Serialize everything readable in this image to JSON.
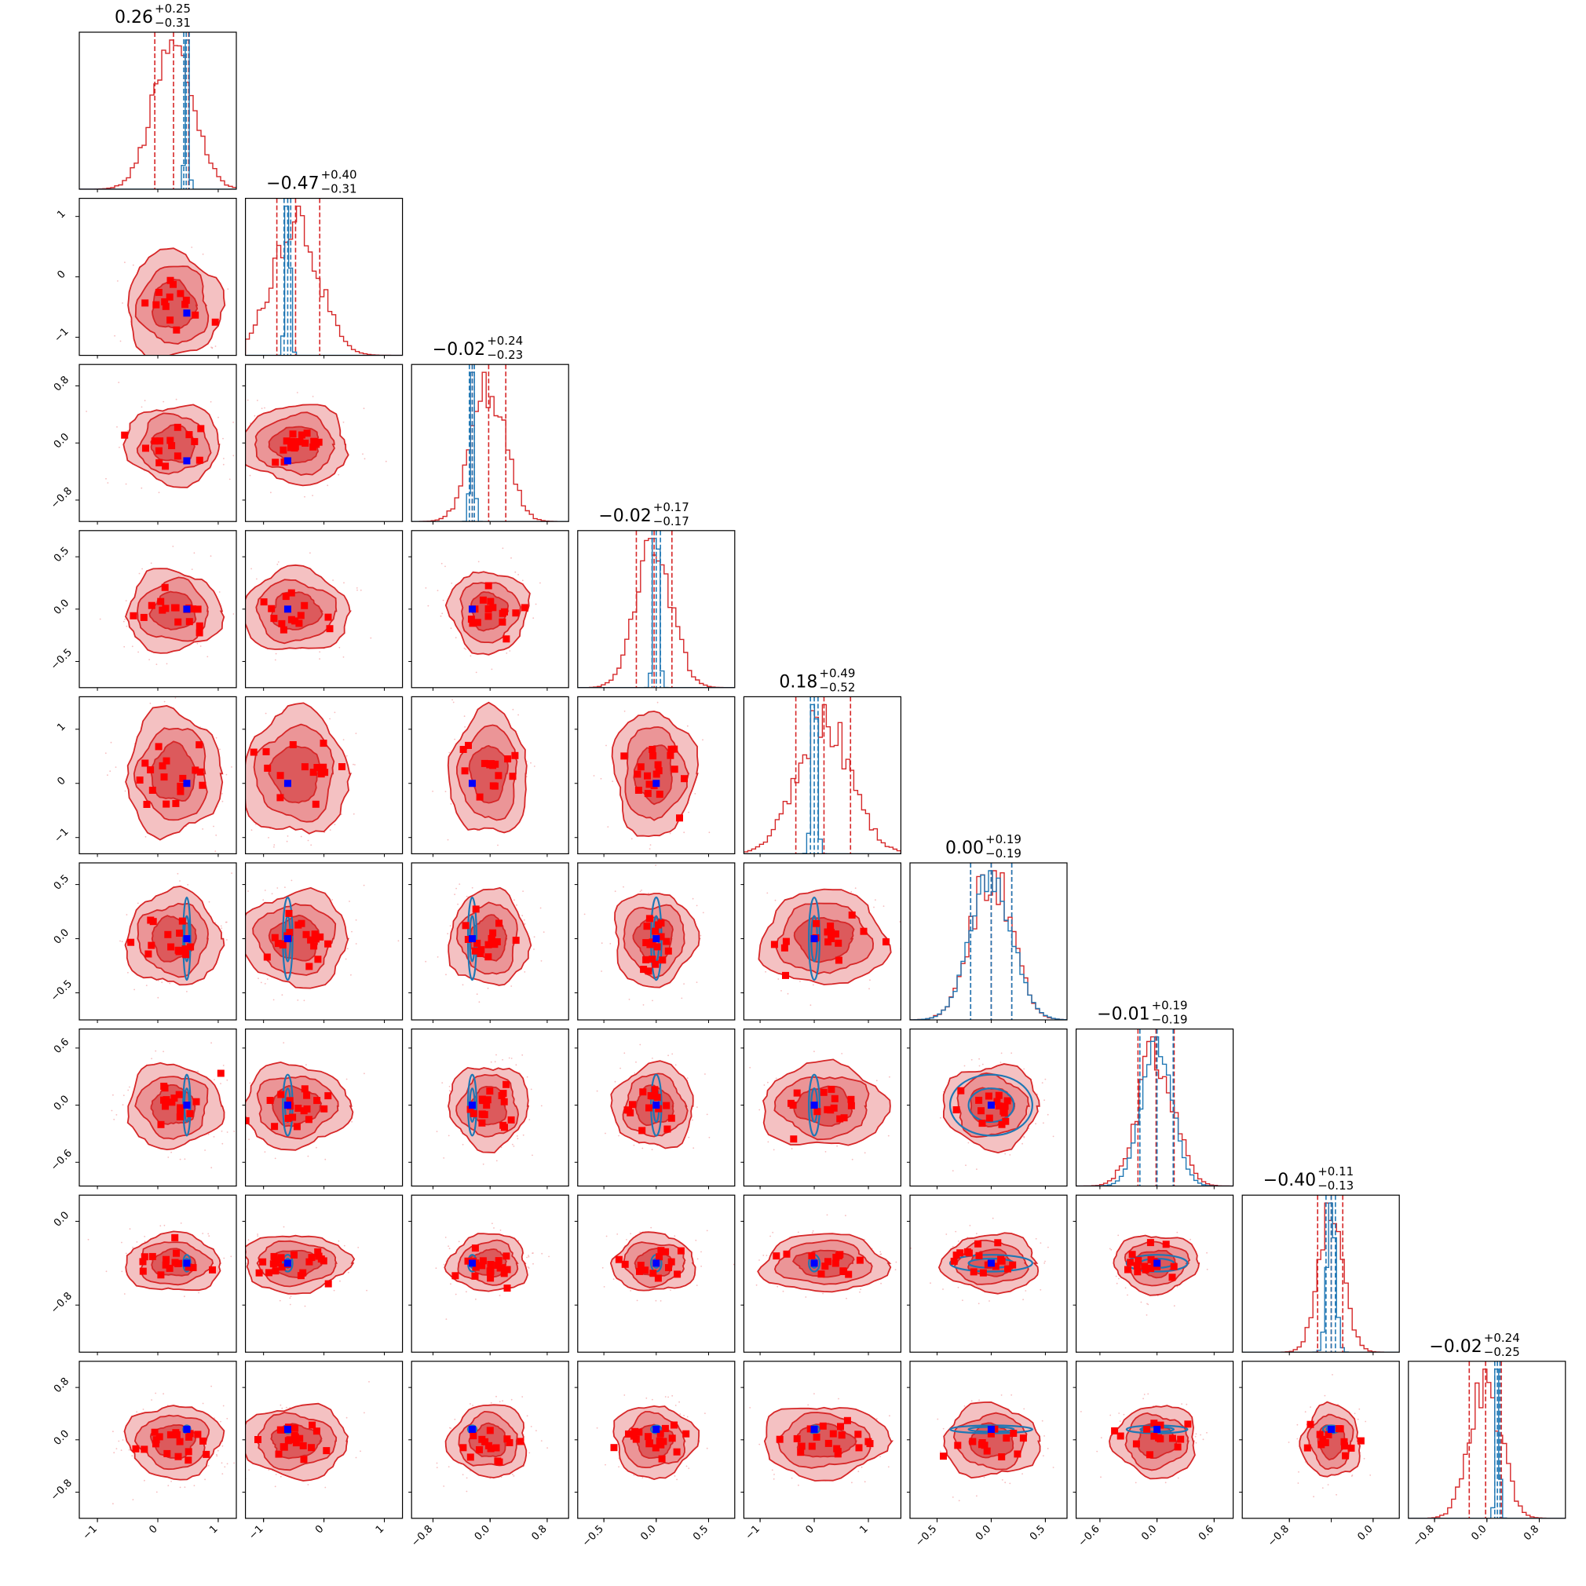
{
  "chart_data": {
    "type": "corner",
    "n_params": 9,
    "series": [
      {
        "color": "#d62728",
        "role": "wide posterior (filled contours + histogram)"
      },
      {
        "color": "#1f77b4",
        "role": "narrow posterior (line contours + histogram)"
      }
    ],
    "markers": {
      "red_color": "#ff0000",
      "blue_color": "#0000ff"
    },
    "titles": [
      {
        "main": "0.26",
        "plus": "+0.25",
        "minus": "−0.31"
      },
      {
        "main": "−0.47",
        "plus": "+0.40",
        "minus": "−0.31"
      },
      {
        "main": "−0.02",
        "plus": "+0.24",
        "minus": "−0.23"
      },
      {
        "main": "−0.02",
        "plus": "+0.17",
        "minus": "−0.17"
      },
      {
        "main": "0.18",
        "plus": "+0.49",
        "minus": "−0.52"
      },
      {
        "main": "0.00",
        "plus": "+0.19",
        "minus": "−0.19"
      },
      {
        "main": "−0.01",
        "plus": "+0.19",
        "minus": "−0.19"
      },
      {
        "main": "−0.40",
        "plus": "+0.11",
        "minus": "−0.13"
      },
      {
        "main": "−0.02",
        "plus": "+0.24",
        "minus": "−0.25"
      }
    ],
    "params": [
      {
        "range": [
          -1.3,
          1.3
        ],
        "ticks": [
          {
            "v": -1,
            "label": "−1"
          },
          {
            "v": 0,
            "label": "0"
          },
          {
            "v": 1,
            "label": "1"
          }
        ],
        "median": 0.26,
        "q_lo": -0.05,
        "q_hi": 0.51,
        "red_sigma": 0.34,
        "blue_center": 0.48,
        "blue_sigma": 0.03,
        "blue_q": [
          0.43,
          0.47,
          0.52
        ],
        "marker": 0.48
      },
      {
        "range": [
          -1.3,
          1.3
        ],
        "ticks": [
          {
            "v": -1,
            "label": "−1"
          },
          {
            "v": 0,
            "label": "0"
          },
          {
            "v": 1,
            "label": "1"
          }
        ],
        "median": -0.47,
        "q_lo": -0.78,
        "q_hi": -0.07,
        "red_sigma": 0.38,
        "blue_center": -0.6,
        "blue_sigma": 0.04,
        "blue_q": [
          -0.66,
          -0.6,
          -0.55
        ],
        "marker": -0.6
      },
      {
        "range": [
          -1.1,
          1.1
        ],
        "ticks": [
          {
            "v": -0.8,
            "label": "−0.8"
          },
          {
            "v": 0,
            "label": "0.0"
          },
          {
            "v": 0.8,
            "label": "0.8"
          }
        ],
        "median": -0.02,
        "q_lo": -0.25,
        "q_hi": 0.22,
        "red_sigma": 0.24,
        "blue_center": -0.25,
        "blue_sigma": 0.03,
        "blue_q": [
          -0.29,
          -0.25,
          -0.22
        ],
        "marker": -0.25
      },
      {
        "range": [
          -0.75,
          0.75
        ],
        "ticks": [
          {
            "v": -0.5,
            "label": "−0.5"
          },
          {
            "v": 0,
            "label": "0.0"
          },
          {
            "v": 0.5,
            "label": "0.5"
          }
        ],
        "median": -0.02,
        "q_lo": -0.19,
        "q_hi": 0.15,
        "red_sigma": 0.17,
        "blue_center": 0.0,
        "blue_sigma": 0.025,
        "blue_q": [
          -0.04,
          0.0,
          0.04
        ],
        "marker": 0.0
      },
      {
        "range": [
          -1.3,
          1.6
        ],
        "ticks": [
          {
            "v": -1,
            "label": "−1"
          },
          {
            "v": 0,
            "label": "0"
          },
          {
            "v": 1,
            "label": "1"
          }
        ],
        "median": 0.18,
        "q_lo": -0.34,
        "q_hi": 0.67,
        "red_sigma": 0.5,
        "blue_center": 0.0,
        "blue_sigma": 0.05,
        "blue_q": [
          -0.07,
          0.0,
          0.07
        ],
        "marker": 0.0
      },
      {
        "range": [
          -0.75,
          0.7
        ],
        "ticks": [
          {
            "v": -0.5,
            "label": "−0.5"
          },
          {
            "v": 0,
            "label": "0.0"
          },
          {
            "v": 0.5,
            "label": "0.5"
          }
        ],
        "median": 0.0,
        "q_lo": -0.19,
        "q_hi": 0.19,
        "red_sigma": 0.19,
        "blue_center": 0.0,
        "blue_sigma": 0.19,
        "blue_q": [
          -0.19,
          0.0,
          0.19
        ],
        "marker": 0.0
      },
      {
        "range": [
          -0.85,
          0.8
        ],
        "ticks": [
          {
            "v": -0.6,
            "label": "−0.6"
          },
          {
            "v": 0,
            "label": "0.0"
          },
          {
            "v": 0.6,
            "label": "0.6"
          }
        ],
        "median": -0.01,
        "q_lo": -0.2,
        "q_hi": 0.18,
        "red_sigma": 0.19,
        "blue_center": 0.0,
        "blue_sigma": 0.16,
        "blue_q": [
          -0.18,
          0.0,
          0.17
        ],
        "marker": 0.0
      },
      {
        "range": [
          -1.25,
          0.25
        ],
        "ticks": [
          {
            "v": -0.8,
            "label": "−0.8"
          },
          {
            "v": 0,
            "label": "0.0"
          }
        ],
        "ticks_offset": -0.4,
        "median": -0.4,
        "q_lo": -0.53,
        "q_hi": -0.29,
        "red_sigma": 0.12,
        "blue_center": -0.4,
        "blue_sigma": 0.04,
        "blue_q": [
          -0.45,
          -0.4,
          -0.36
        ],
        "marker": -0.4
      },
      {
        "range": [
          -1.2,
          1.2
        ],
        "ticks": [
          {
            "v": -0.8,
            "label": "−0.8"
          },
          {
            "v": 0,
            "label": "0.0"
          },
          {
            "v": 0.8,
            "label": "0.8"
          }
        ],
        "median": -0.02,
        "q_lo": -0.27,
        "q_hi": 0.22,
        "red_sigma": 0.24,
        "blue_center": 0.16,
        "blue_sigma": 0.03,
        "blue_q": [
          0.12,
          0.16,
          0.2
        ],
        "marker": 0.16
      }
    ],
    "blue_contour_pairs": "params 6-9 vs all preceding params",
    "grid": false,
    "legend": "none"
  }
}
